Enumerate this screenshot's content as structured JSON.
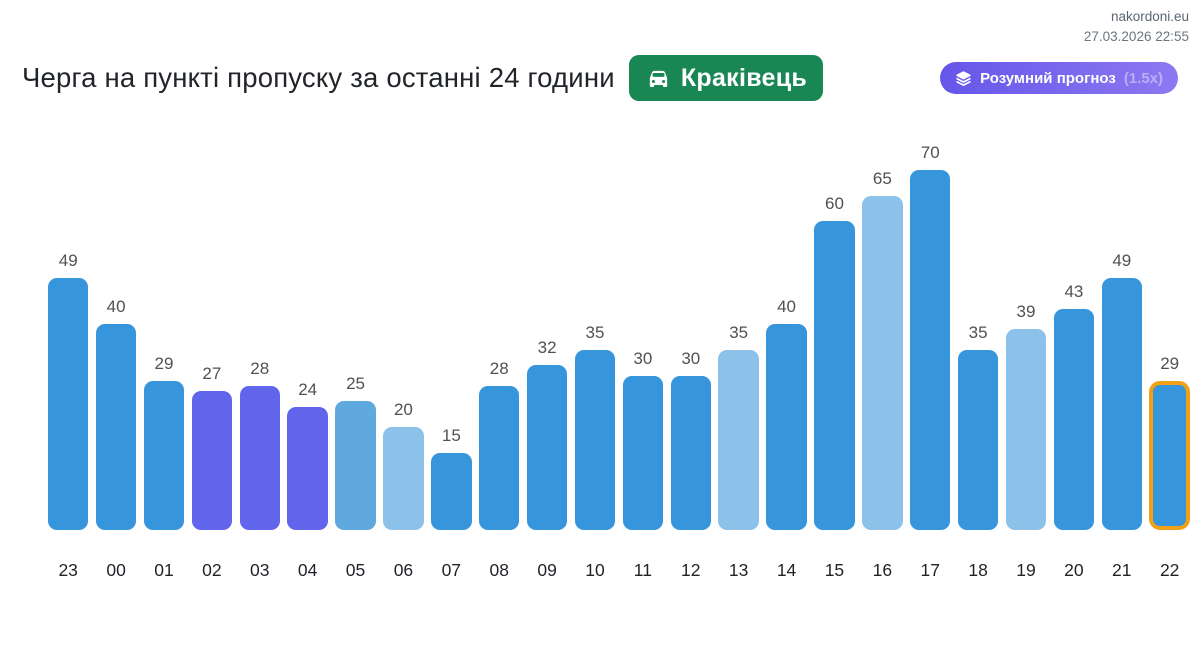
{
  "header": {
    "site": "nakordoni.eu",
    "timestamp": "27.03.2026 22:55",
    "title": "Черга на пункті пропуску за останні 24 години",
    "checkpoint_label": "Краківець",
    "forecast_label": "Розумний прогноз",
    "forecast_multiplier": "(1.5x)"
  },
  "colors": {
    "bar_default": "#3795DB",
    "bar_purple": "#6165EC",
    "bar_light": "#60A9DF",
    "bar_lighter": "#8CC2E9",
    "highlight_border": "#F2A117",
    "badge_green": "#198754",
    "pill_gradient_start": "#6456E9",
    "pill_gradient_end": "#8E79F2",
    "value_label": "#515151",
    "axis_label": "#1F2328"
  },
  "chart_data": {
    "type": "bar",
    "title": "Черга на пункті пропуску за останні 24 години",
    "xlabel": "",
    "ylabel": "",
    "ylim": [
      0,
      70
    ],
    "grid": false,
    "legend": false,
    "categories": [
      "23",
      "00",
      "01",
      "02",
      "03",
      "04",
      "05",
      "06",
      "07",
      "08",
      "09",
      "10",
      "11",
      "12",
      "13",
      "14",
      "15",
      "16",
      "17",
      "18",
      "19",
      "20",
      "21",
      "22"
    ],
    "values": [
      49,
      40,
      29,
      27,
      28,
      24,
      25,
      20,
      15,
      28,
      32,
      35,
      30,
      30,
      35,
      40,
      60,
      65,
      70,
      35,
      39,
      43,
      49,
      29
    ],
    "bar_styles": [
      "bar_default",
      "bar_default",
      "bar_default",
      "bar_purple",
      "bar_purple",
      "bar_purple",
      "bar_light",
      "bar_lighter",
      "bar_default",
      "bar_default",
      "bar_default",
      "bar_default",
      "bar_default",
      "bar_default",
      "bar_lighter",
      "bar_default",
      "bar_default",
      "bar_lighter",
      "bar_default",
      "bar_default",
      "bar_lighter",
      "bar_default",
      "bar_default",
      "bar_default"
    ],
    "highlighted_index": 23
  }
}
